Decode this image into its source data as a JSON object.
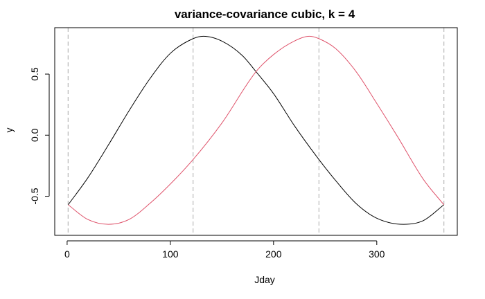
{
  "chart_data": {
    "type": "line",
    "title": "variance-covariance cubic, k = 4",
    "xlabel": "Jday",
    "ylabel": "y",
    "xlim": [
      -12,
      378
    ],
    "ylim": [
      -0.82,
      0.88
    ],
    "x_ticks": [
      0,
      100,
      200,
      300
    ],
    "x_tick_labels": [
      "0",
      "100",
      "200",
      "300"
    ],
    "y_ticks": [
      -0.5,
      0.0,
      0.5
    ],
    "y_tick_labels": [
      "-0.5",
      "0.0",
      "0.5"
    ],
    "knots": [
      1,
      122,
      244,
      365
    ],
    "grid": false,
    "legend": "none",
    "series": [
      {
        "color": "#000000",
        "x": [
          1,
          20,
          40,
          60,
          80,
          100,
          122,
          132,
          150,
          170,
          183,
          200,
          220,
          244,
          260,
          280,
          300,
          326,
          345,
          365
        ],
        "y": [
          -0.57,
          -0.35,
          -0.08,
          0.2,
          0.46,
          0.67,
          0.79,
          0.81,
          0.77,
          0.65,
          0.52,
          0.34,
          0.08,
          -0.2,
          -0.37,
          -0.56,
          -0.68,
          -0.73,
          -0.7,
          -0.57
        ]
      },
      {
        "color": "#DF536B",
        "x": [
          1,
          20,
          40,
          60,
          80,
          100,
          122,
          150,
          183,
          200,
          220,
          235,
          244,
          260,
          280,
          300,
          320,
          345,
          365
        ],
        "y": [
          -0.57,
          -0.69,
          -0.73,
          -0.69,
          -0.56,
          -0.4,
          -0.2,
          0.1,
          0.52,
          0.66,
          0.77,
          0.81,
          0.79,
          0.71,
          0.52,
          0.26,
          -0.01,
          -0.36,
          -0.57
        ]
      }
    ]
  }
}
